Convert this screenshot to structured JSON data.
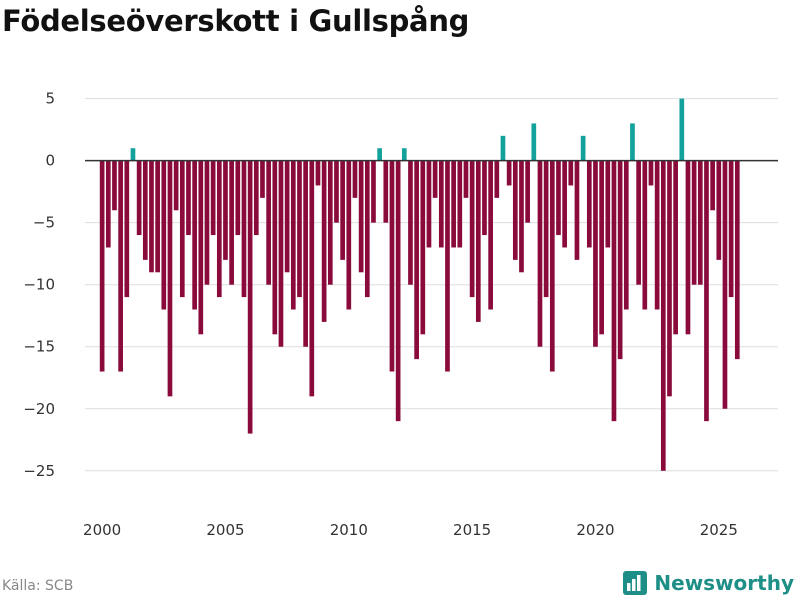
{
  "header": {
    "title": "Födelseöverskott i Gullspång"
  },
  "footer": {
    "source": "Källa: SCB",
    "brand": "Newsworthy"
  },
  "colors": {
    "positive": "#12a19b",
    "negative": "#8a0a3c",
    "grid": "#dddddd",
    "zero": "#333333",
    "brand": "#1e8f86"
  },
  "chart_data": {
    "type": "bar",
    "title": "Födelseöverskott i Gullspång",
    "xlabel": "",
    "ylabel": "",
    "xlim": [
      1998.9,
      2027.4
    ],
    "ylim": [
      -28,
      6.5
    ],
    "x_ticks": [
      2000,
      2005,
      2010,
      2015,
      2020,
      2025
    ],
    "y_ticks": [
      5,
      0,
      -5,
      -10,
      -15,
      -20,
      -25
    ],
    "x_tick_labels": [
      "2000",
      "2005",
      "2010",
      "2015",
      "2020",
      "2025"
    ],
    "y_tick_labels": [
      "5",
      "0",
      "−5",
      "−10",
      "−15",
      "−20",
      "−25"
    ],
    "start_year": 2000,
    "periods_per_year": 4,
    "values": [
      -17,
      -7,
      -4,
      -17,
      -11,
      1,
      -6,
      -8,
      -9,
      -9,
      -12,
      -19,
      -4,
      -11,
      -6,
      -12,
      -14,
      -10,
      -6,
      -11,
      -8,
      -10,
      -6,
      -11,
      -22,
      -6,
      -3,
      -10,
      -14,
      -15,
      -9,
      -12,
      -11,
      -15,
      -19,
      -2,
      -13,
      -10,
      -5,
      -8,
      -12,
      -3,
      -9,
      -11,
      -5,
      1,
      -5,
      -17,
      -21,
      1,
      -10,
      -16,
      -14,
      -7,
      -3,
      -7,
      -17,
      -7,
      -7,
      -3,
      -11,
      -13,
      -6,
      -12,
      -3,
      2,
      -2,
      -8,
      -9,
      -5,
      3,
      -15,
      -11,
      -17,
      -6,
      -7,
      -2,
      -8,
      2,
      -7,
      -15,
      -14,
      -7,
      -21,
      -16,
      -12,
      3,
      -10,
      -12,
      -2,
      -12,
      -25,
      -19,
      -14,
      5,
      -14,
      -10,
      -10,
      -21,
      -4,
      -8,
      -20,
      -11,
      -16
    ]
  }
}
